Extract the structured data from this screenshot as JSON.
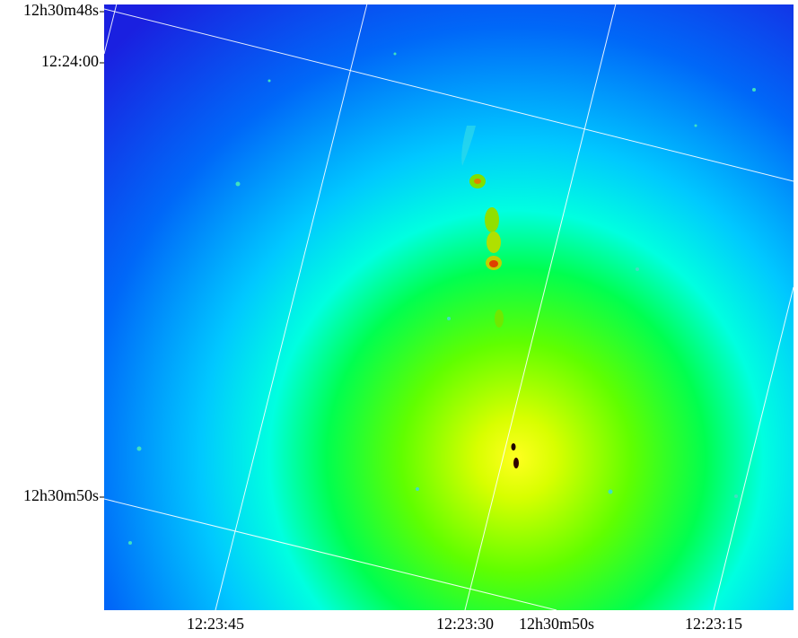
{
  "axis_labels": {
    "left": [
      "12h30m48s",
      "12:24:00",
      "12h30m50s"
    ],
    "bottom": [
      "12:23:45",
      "12:23:30",
      "12h30m50s",
      "12:23:15"
    ]
  }
}
